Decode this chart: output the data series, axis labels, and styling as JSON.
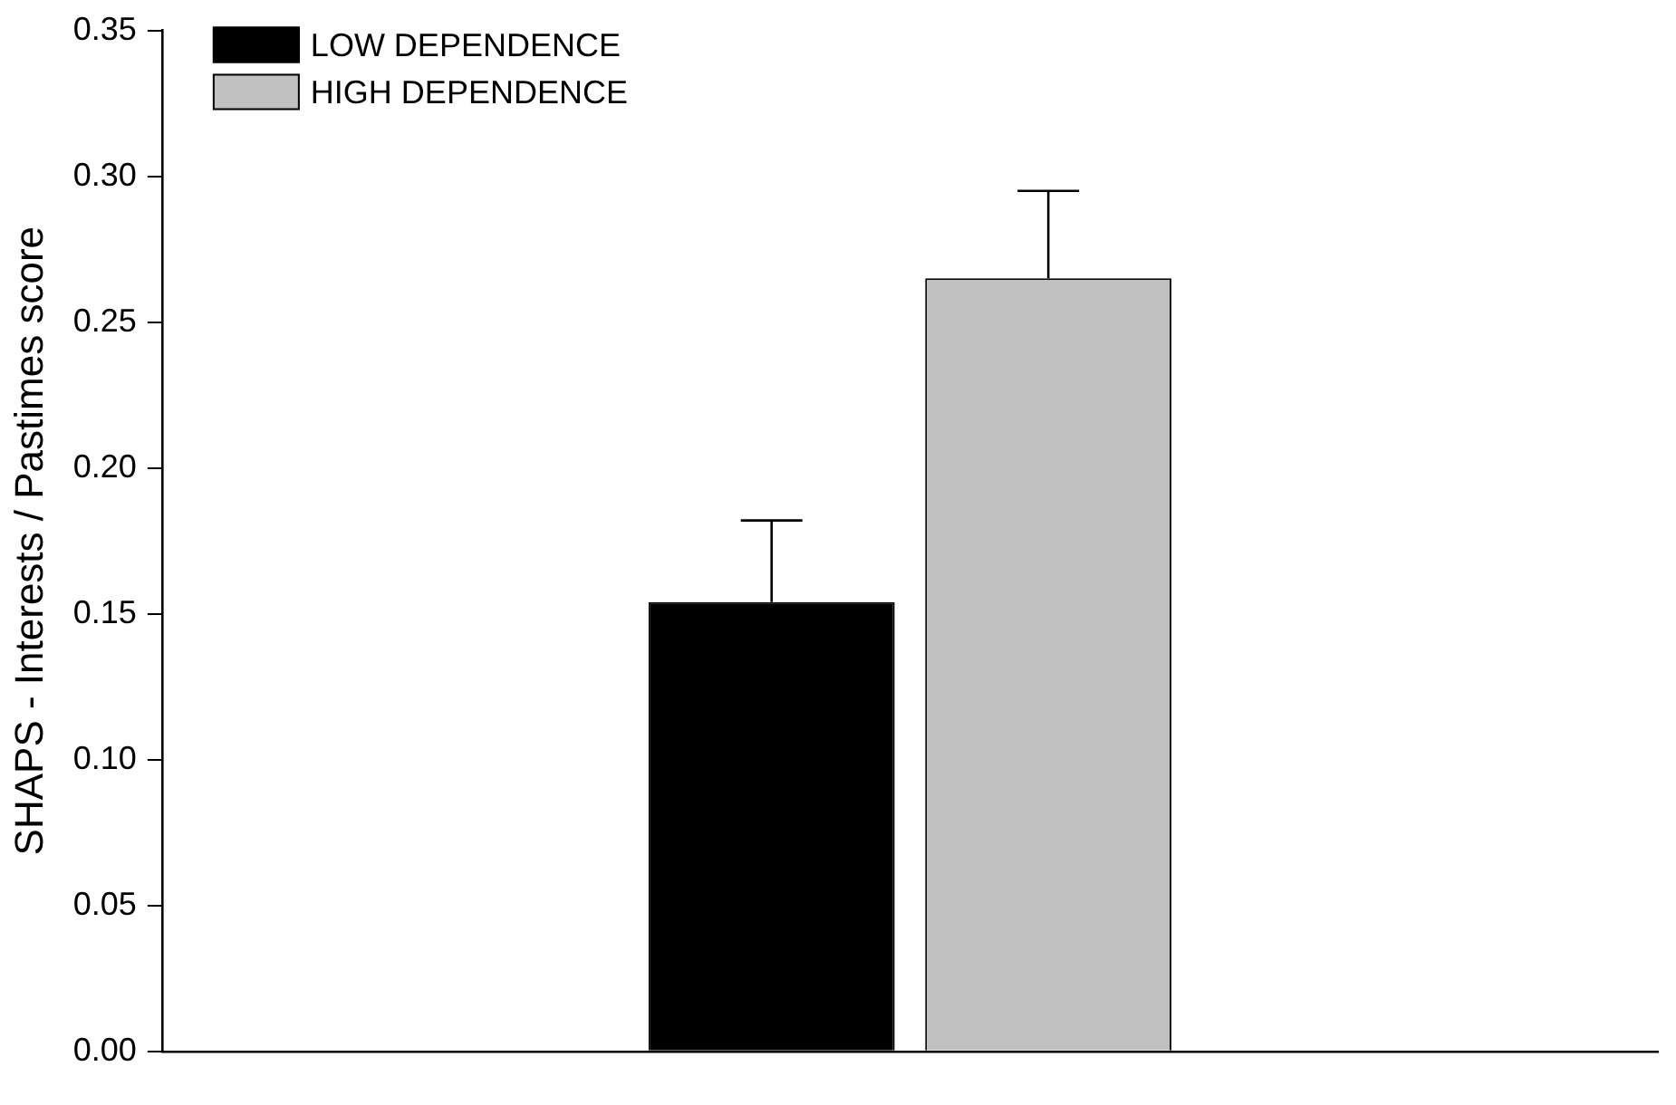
{
  "chart_data": {
    "type": "bar",
    "ylabel": "SHAPS - Interests / Pastimes score",
    "categories": [
      null
    ],
    "series": [
      {
        "name": "LOW DEPENDENCE",
        "color": "#000000",
        "values": [
          0.154
        ],
        "errors": [
          [
            0.154,
            0.182
          ]
        ]
      },
      {
        "name": "HIGH DEPENDENCE",
        "color": "#c0c0c0",
        "values": [
          0.265
        ],
        "errors": [
          [
            0.265,
            0.295
          ]
        ]
      }
    ],
    "ylim": [
      0,
      0.35
    ],
    "yticks": [
      {
        "value": 0,
        "label": "0.00"
      },
      {
        "value": 0.05,
        "label": "0.05"
      },
      {
        "value": 0.1,
        "label": "0.10"
      },
      {
        "value": 0.15,
        "label": "0.15"
      },
      {
        "value": 0.2,
        "label": "0.20"
      },
      {
        "value": 0.25,
        "label": "0.25"
      },
      {
        "value": 0.3,
        "label": "0.30"
      },
      {
        "value": 0.35,
        "label": "0.35"
      }
    ],
    "grid": false,
    "legend": "top left"
  }
}
